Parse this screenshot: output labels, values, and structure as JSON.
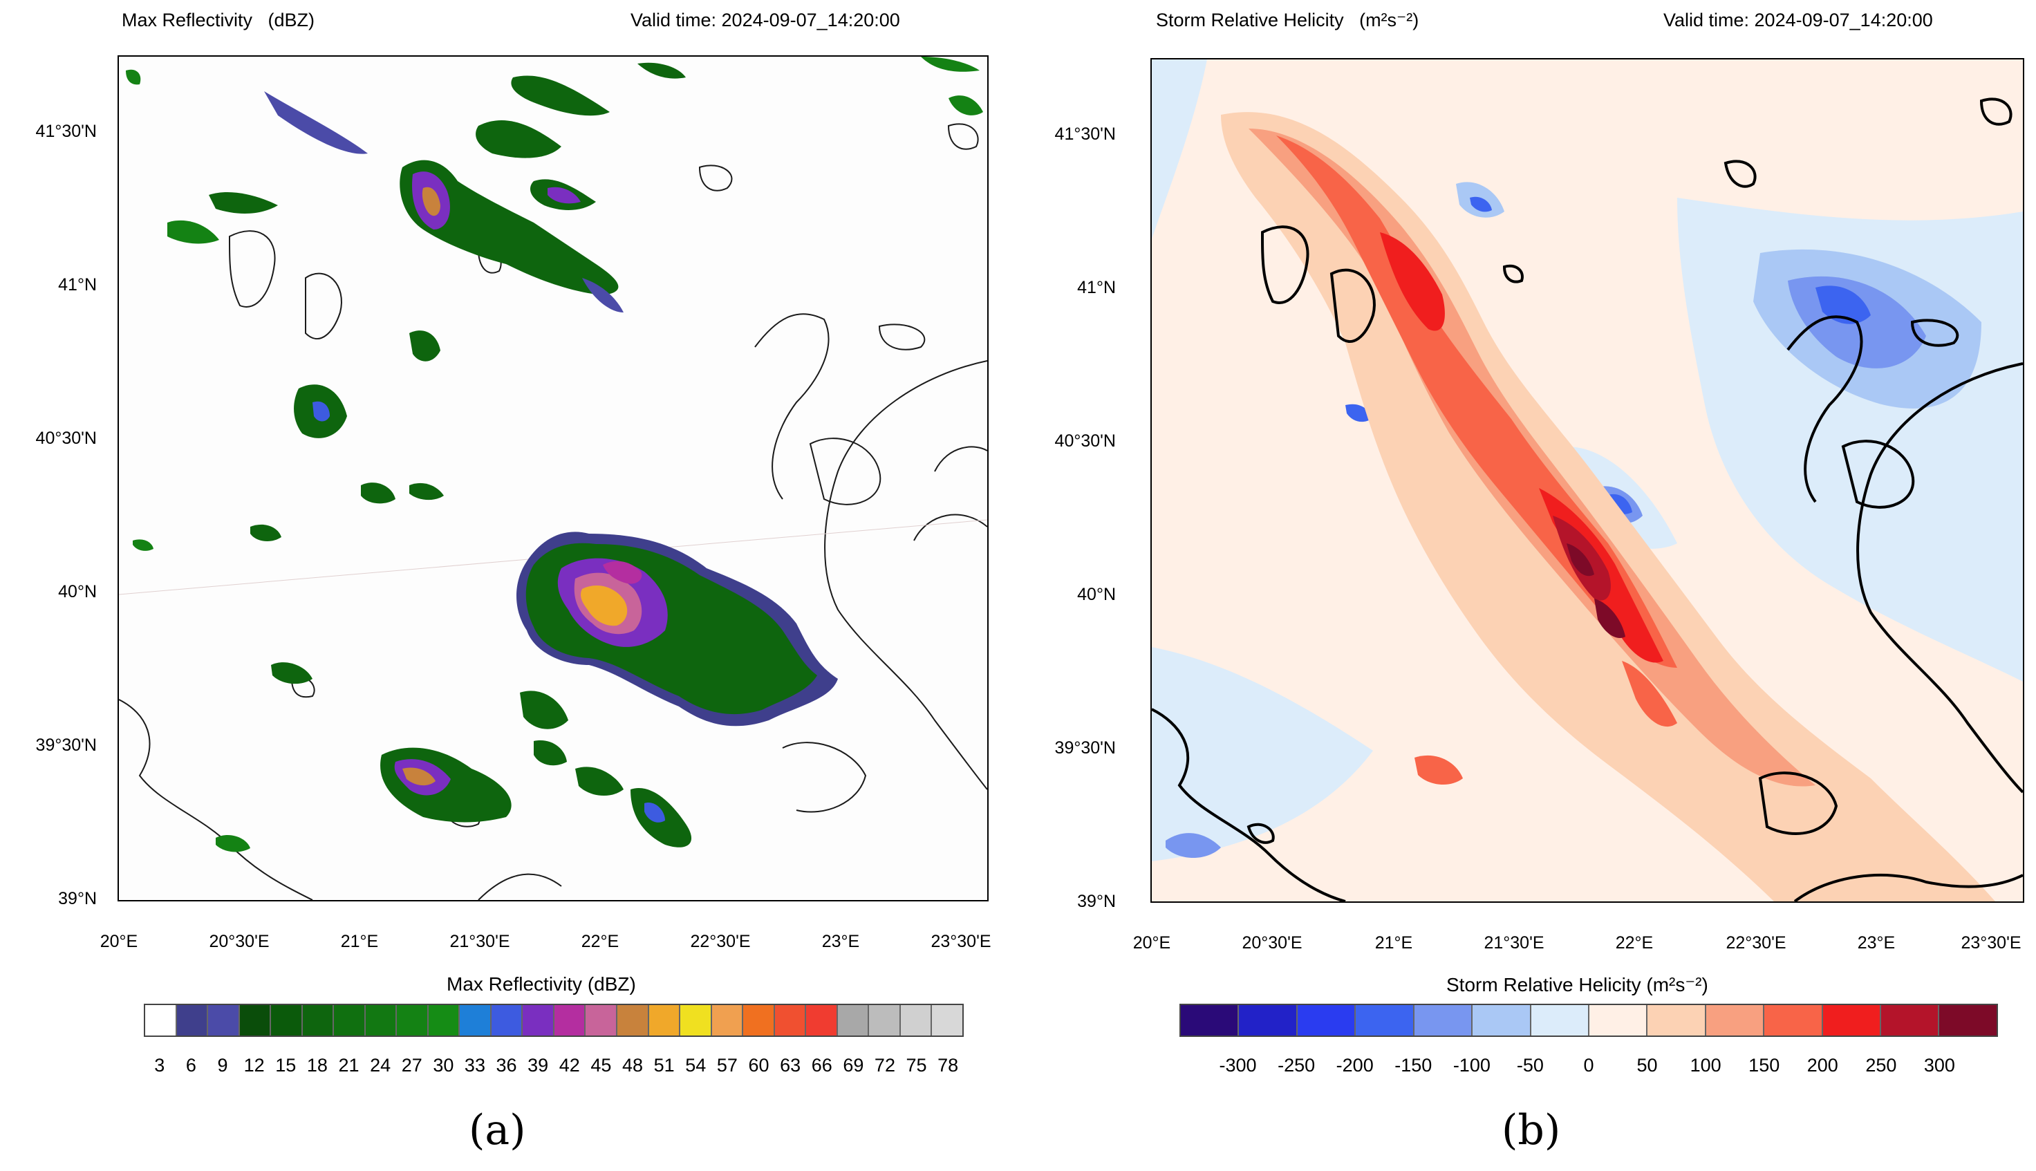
{
  "panel_a": {
    "title": "Max Reflectivity   (dBZ)",
    "valid_time": "Valid time: 2024-09-07_14:20:00",
    "lat_labels": [
      "41°30'N",
      "41°N",
      "40°30'N",
      "40°N",
      "39°30'N",
      "39°N"
    ],
    "lon_labels": [
      "20°E",
      "20°30'E",
      "21°E",
      "21°30'E",
      "22°E",
      "22°30'E",
      "23°E",
      "23°30'E"
    ],
    "colorbar": {
      "title": "Max Reflectivity   (dBZ)",
      "colors": [
        "#ffffff",
        "#3f3f8c",
        "#4b4ba8",
        "#0a4d0a",
        "#0b5a0b",
        "#0e650e",
        "#107010",
        "#127812",
        "#148214",
        "#158c15",
        "#1e7fd8",
        "#3d5be0",
        "#7a2fc0",
        "#b42ea0",
        "#c8649a",
        "#c8823c",
        "#f0a82a",
        "#f0e020",
        "#f0a050",
        "#f07020",
        "#f05030",
        "#f03c30",
        "#a8a8a8",
        "#bcbcbc",
        "#d0d0d0",
        "#d8d8d8"
      ],
      "labels": [
        "3",
        "6",
        "9",
        "12",
        "15",
        "18",
        "21",
        "24",
        "27",
        "30",
        "33",
        "36",
        "39",
        "42",
        "45",
        "48",
        "51",
        "54",
        "57",
        "60",
        "63",
        "66",
        "69",
        "72",
        "75",
        "78"
      ]
    },
    "caption": "(a)"
  },
  "panel_b": {
    "title": "Storm Relative Helicity   (m²s⁻²)",
    "valid_time": "Valid time: 2024-09-07_14:20:00",
    "lat_labels": [
      "41°30'N",
      "41°N",
      "40°30'N",
      "40°N",
      "39°30'N",
      "39°N"
    ],
    "lon_labels": [
      "20°E",
      "20°30'E",
      "21°E",
      "21°30'E",
      "22°E",
      "22°30'E",
      "23°E",
      "23°30'E"
    ],
    "colorbar": {
      "title": "Storm Relative Helicity   (m²s⁻²)",
      "colors": [
        "#2a0a78",
        "#2222c8",
        "#2a3cf0",
        "#3c64f0",
        "#7896f0",
        "#aac8f5",
        "#dcecfa",
        "#fff0e6",
        "#fcd2b4",
        "#f8a080",
        "#f86448",
        "#f01e1e",
        "#b4142a",
        "#7d0a28"
      ],
      "labels": [
        "-300",
        "-250",
        "-200",
        "-150",
        "-100",
        "-50",
        "0",
        "50",
        "100",
        "150",
        "200",
        "250",
        "300"
      ]
    },
    "caption": "(b)"
  }
}
